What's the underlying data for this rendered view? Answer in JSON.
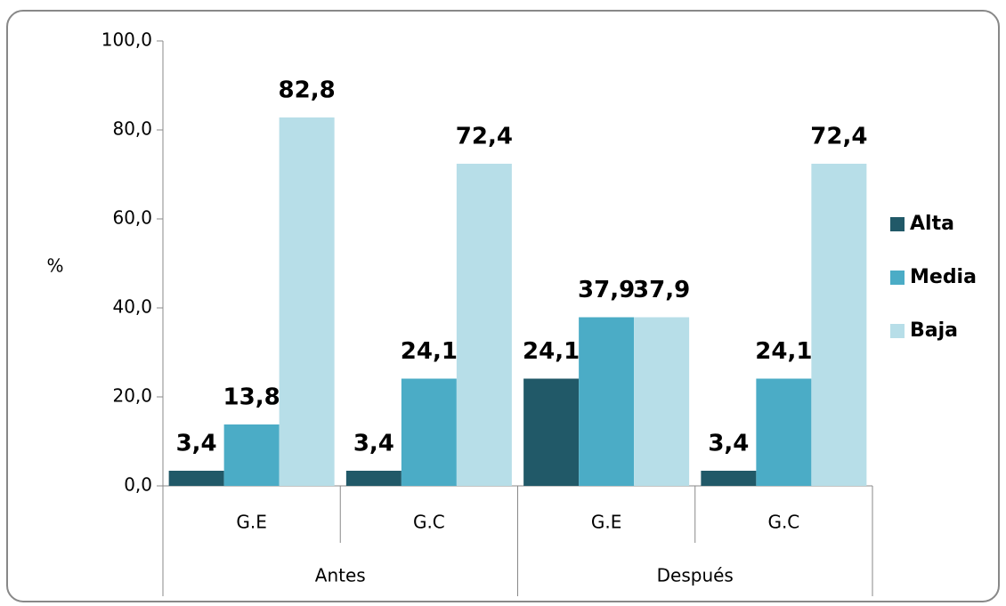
{
  "chart_data": {
    "type": "bar",
    "ylabel": "%",
    "groups": [
      {
        "name": "Antes",
        "categories": [
          "G.E",
          "G.C"
        ]
      },
      {
        "name": "Después",
        "categories": [
          "G.E",
          "G.C"
        ]
      }
    ],
    "series": [
      {
        "name": "Alta",
        "color": "#215968",
        "values": [
          3.4,
          3.4,
          24.1,
          3.4
        ],
        "value_labels": [
          "3,4",
          "3,4",
          "24,1",
          "3,4"
        ]
      },
      {
        "name": "Media",
        "color": "#4bacc6",
        "values": [
          13.8,
          24.1,
          37.9,
          24.1
        ],
        "value_labels": [
          "13,8",
          "24,1",
          "37,9",
          "24,1"
        ]
      },
      {
        "name": "Baja",
        "color": "#b7dee8",
        "values": [
          82.8,
          72.4,
          37.9,
          72.4
        ],
        "value_labels": [
          "82,8",
          "72,4",
          "37,9",
          "72,4"
        ]
      }
    ],
    "ylim": [
      0,
      100
    ],
    "yticks": [
      {
        "value": 0,
        "label": "0,0"
      },
      {
        "value": 20,
        "label": "20,0"
      },
      {
        "value": 40,
        "label": "40,0"
      },
      {
        "value": 60,
        "label": "60,0"
      },
      {
        "value": 80,
        "label": "80,0"
      },
      {
        "value": 100,
        "label": "100,0"
      }
    ],
    "legend": "right"
  }
}
